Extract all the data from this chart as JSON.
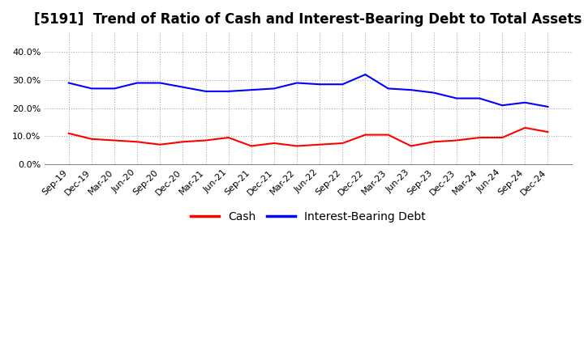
{
  "title": "[5191]  Trend of Ratio of Cash and Interest-Bearing Debt to Total Assets",
  "x_labels": [
    "Sep-19",
    "Dec-19",
    "Mar-20",
    "Jun-20",
    "Sep-20",
    "Dec-20",
    "Mar-21",
    "Jun-21",
    "Sep-21",
    "Dec-21",
    "Mar-22",
    "Jun-22",
    "Sep-22",
    "Dec-22",
    "Mar-23",
    "Jun-23",
    "Sep-23",
    "Dec-23",
    "Mar-24",
    "Jun-24",
    "Sep-24",
    "Dec-24"
  ],
  "cash": [
    11.0,
    9.0,
    8.5,
    8.0,
    7.0,
    8.0,
    8.5,
    9.5,
    6.5,
    7.5,
    6.5,
    7.0,
    7.5,
    10.5,
    10.5,
    6.5,
    8.0,
    8.5,
    9.5,
    9.5,
    13.0,
    11.5
  ],
  "debt": [
    29.0,
    27.0,
    27.0,
    29.0,
    29.0,
    27.5,
    26.0,
    26.0,
    26.5,
    27.0,
    29.0,
    28.5,
    28.5,
    32.0,
    27.0,
    26.5,
    25.5,
    23.5,
    23.5,
    21.0,
    22.0,
    20.5
  ],
  "cash_color": "#FF0000",
  "debt_color": "#0000FF",
  "ylim": [
    0,
    47
  ],
  "yticks": [
    0.0,
    10.0,
    20.0,
    30.0,
    40.0
  ],
  "plot_bg_color": "#FFFFFF",
  "fig_bg_color": "#FFFFFF",
  "grid_color": "#AAAAAA",
  "legend_cash": "Cash",
  "legend_debt": "Interest-Bearing Debt",
  "title_fontsize": 12,
  "tick_fontsize": 8,
  "legend_fontsize": 10,
  "linewidth": 1.5
}
